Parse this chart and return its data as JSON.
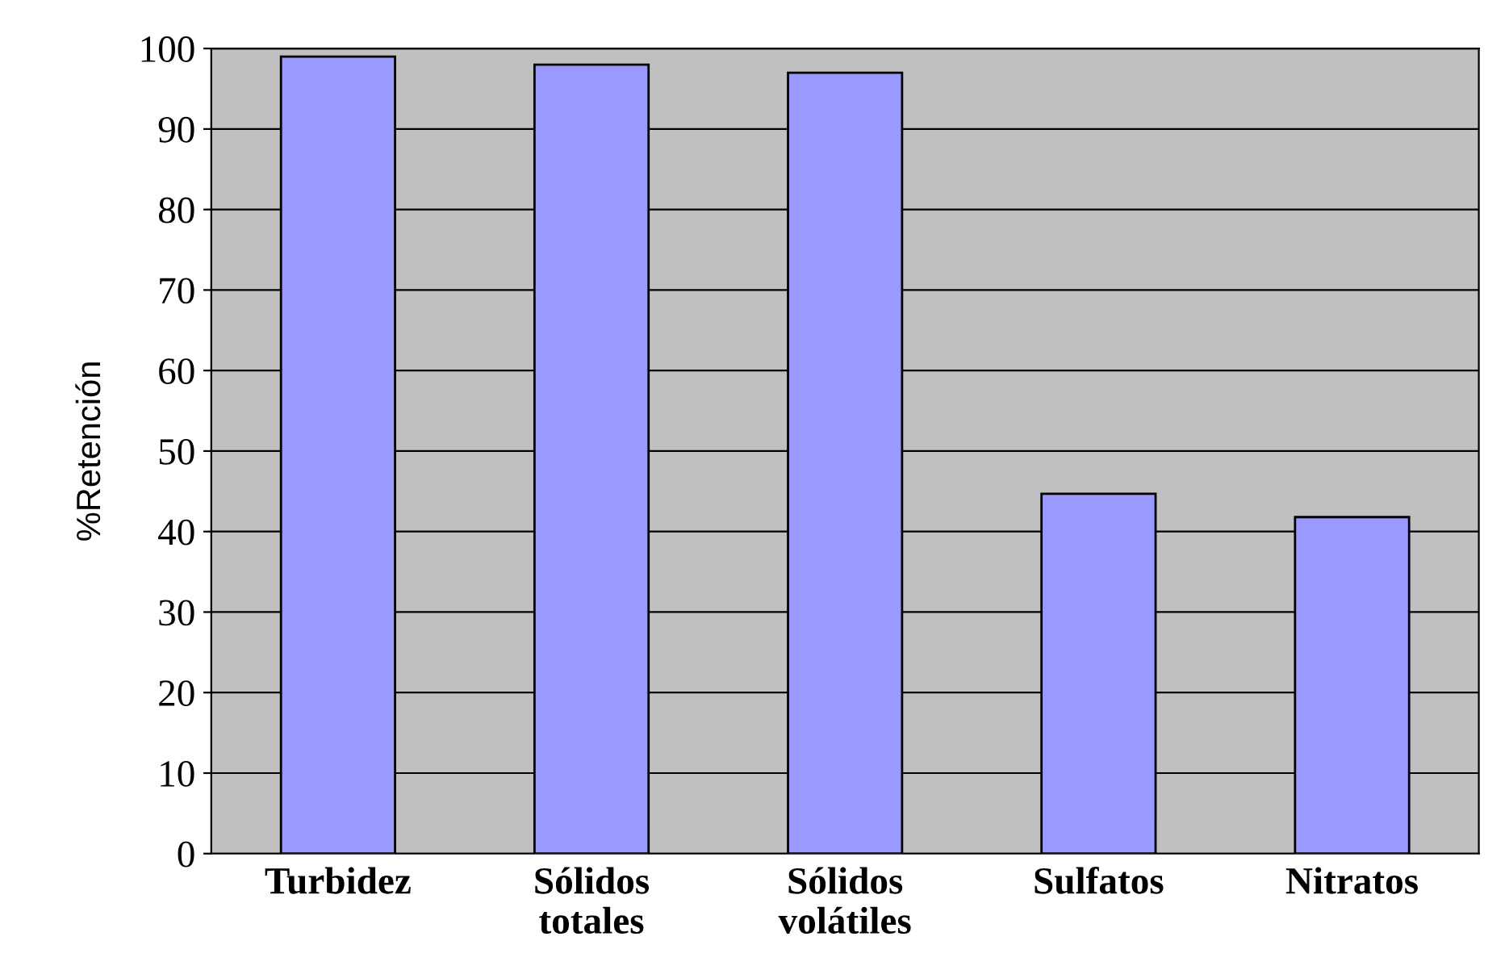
{
  "chart_data": {
    "type": "bar",
    "ylabel": "%Retención",
    "categories": [
      "Turbidez",
      "Sólidos totales",
      "Sólidos volátiles",
      "Sulfatos",
      "Nitratos"
    ],
    "values": [
      99,
      98,
      97,
      44.7,
      41.8
    ],
    "color": "#9999ff",
    "ylim": [
      0,
      100
    ],
    "yticks": [
      0,
      10,
      20,
      30,
      40,
      50,
      60,
      70,
      80,
      90,
      100
    ],
    "grid": "y"
  }
}
